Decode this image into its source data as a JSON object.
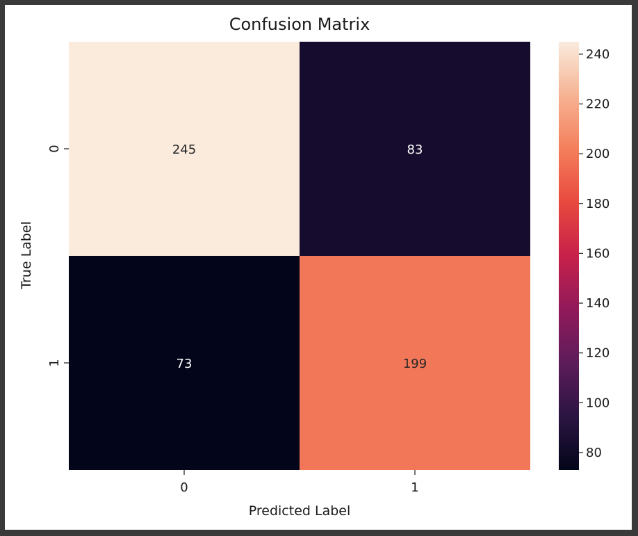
{
  "chart_data": {
    "type": "heatmap",
    "title": "Confusion Matrix",
    "xlabel": "Predicted Label",
    "ylabel": "True Label",
    "x_categories": [
      "0",
      "1"
    ],
    "y_categories": [
      "0",
      "1"
    ],
    "values": [
      [
        245,
        83
      ],
      [
        73,
        199
      ]
    ],
    "colorbar": {
      "ticks": [
        80,
        100,
        120,
        140,
        160,
        180,
        200,
        220,
        240
      ],
      "range": [
        73,
        245
      ],
      "colormap": [
        "#03051a",
        "#2b1542",
        "#5d1c5a",
        "#911a5a",
        "#c7214a",
        "#e8493e",
        "#f47f5c",
        "#f6b393",
        "#faebdd"
      ]
    },
    "grid": false
  }
}
